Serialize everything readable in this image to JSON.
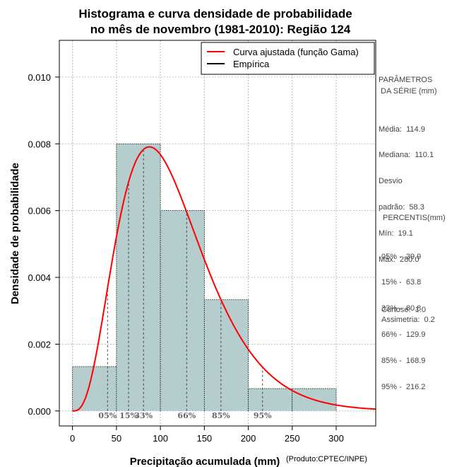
{
  "chart_data": {
    "type": "bar",
    "title_line1": "Histograma e curva densidade de probabilidade",
    "title_line2": "no mês de novembro (1981-2010): Região 124",
    "xlabel": "Precipitação acumulada (mm)",
    "ylabel": "Densidade de probabilidade",
    "credit": "(Produto:CPTEC/INPE)",
    "xlim": [
      -15,
      345
    ],
    "ylim": [
      -0.00045,
      0.0111
    ],
    "x_ticks": [
      0,
      50,
      100,
      150,
      200,
      250,
      300
    ],
    "x_tick_labels": [
      "0",
      "50",
      "100",
      "150",
      "200",
      "250",
      "300"
    ],
    "y_ticks": [
      0,
      0.002,
      0.004,
      0.006,
      0.008,
      0.01
    ],
    "y_tick_labels": [
      "0.000",
      "0.002",
      "0.004",
      "0.006",
      "0.008",
      "0.010"
    ],
    "grid": true,
    "bins": [
      {
        "from": 0,
        "to": 50,
        "density": 0.00133
      },
      {
        "from": 50,
        "to": 100,
        "density": 0.008
      },
      {
        "from": 100,
        "to": 150,
        "density": 0.006
      },
      {
        "from": 150,
        "to": 200,
        "density": 0.00333
      },
      {
        "from": 200,
        "to": 250,
        "density": 0.00067
      },
      {
        "from": 250,
        "to": 300,
        "density": 0.00067
      }
    ],
    "gamma_fit": {
      "shape": 4.17,
      "scale": 27.6,
      "x_max": 345
    },
    "percentile_lines": [
      {
        "label": "05%",
        "x": 39.9
      },
      {
        "label": "15%",
        "x": 63.8
      },
      {
        "label": "33%",
        "x": 80.8
      },
      {
        "label": "66%",
        "x": 129.9
      },
      {
        "label": "85%",
        "x": 168.9
      },
      {
        "label": "95%",
        "x": 216.2
      }
    ],
    "legend": [
      {
        "label": "Curva ajustada (função Gama)",
        "color": "#ff0000"
      },
      {
        "label": "Empírica",
        "color": "#000000"
      }
    ],
    "legend_position": "top-right"
  },
  "colors": {
    "bar_fill": "#b5cdcd",
    "curve": "#ff0000",
    "grid": "#aaaaaa"
  },
  "side_panel": {
    "params_title_1": "PARÂMETROS",
    "params_title_2": " DA SÉRIE (mm)",
    "params": [
      "Média:  114.9",
      "Mediana:  110.1",
      "Desvio",
      "padrão:  58.3",
      "Mín:  19.1",
      "Máx:  280.0"
    ],
    "percentis_title": "PERCENTIS(mm)",
    "percentis": [
      "05% -  39.9",
      "15% -  63.8",
      "33% -  80.8",
      "66% -  129.9",
      "85% -  168.9",
      "95% -  216.2"
    ],
    "curtose": "Curtose:  1.0",
    "assimetria": "Assimetria:  0.2"
  }
}
